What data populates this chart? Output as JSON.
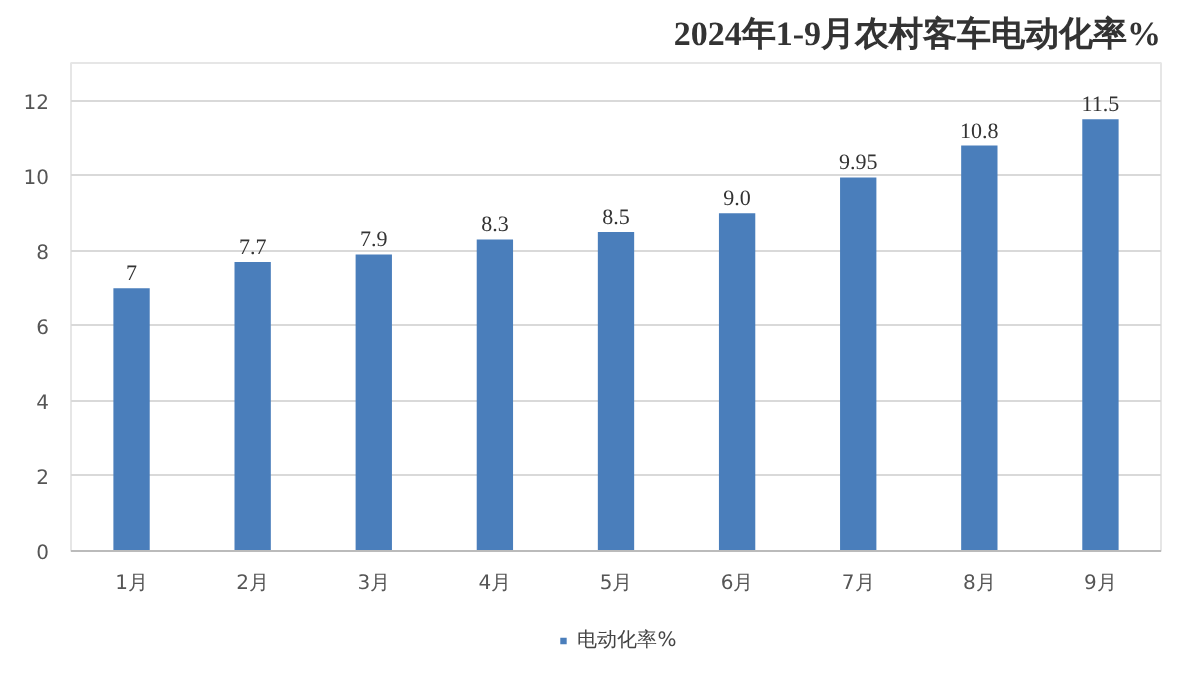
{
  "chart_data": {
    "type": "bar",
    "title": "2024年1-9月农村客车电动化率%",
    "categories": [
      "1月",
      "2月",
      "3月",
      "4月",
      "5月",
      "6月",
      "7月",
      "8月",
      "9月"
    ],
    "series": [
      {
        "name": "电动化率%",
        "color": "#4a7ebb",
        "values": [
          7,
          7.7,
          7.9,
          8.3,
          8.5,
          9.0,
          9.95,
          10.8,
          11.5
        ],
        "value_labels": [
          "7",
          "7.7",
          "7.9",
          "8.3",
          "8.5",
          "9.0",
          "9.95",
          "10.8",
          "11.5"
        ]
      }
    ],
    "ylim": [
      0,
      13
    ],
    "yticks": [
      0,
      2,
      4,
      6,
      8,
      10,
      12
    ],
    "grid": "y",
    "legend": "bottom"
  }
}
